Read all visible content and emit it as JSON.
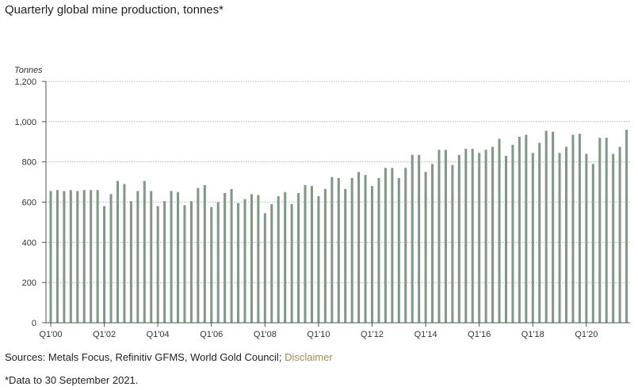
{
  "title": "Quarterly global mine production, tonnes*",
  "sources": {
    "text": "Sources: Metals Focus, Refinitiv GFMS, World Gold Council;",
    "link_label": "Disclaimer"
  },
  "footnote": "*Data to 30 September 2021.",
  "colors": {
    "bar": "#7f9a84",
    "grid": "#a8a8a8",
    "axis": "#555555",
    "link": "#a38a55"
  },
  "chart_data": {
    "type": "bar",
    "ylabel": "Tonnes",
    "xlabel": "",
    "ylim": [
      0,
      1200
    ],
    "yticks": [
      0,
      200,
      400,
      600,
      800,
      1000,
      1200
    ],
    "ytick_labels": [
      "0",
      "200",
      "400",
      "600",
      "800",
      "1,000",
      "1,200"
    ],
    "grid": true,
    "xtick_labels": [
      "Q1'00",
      "Q1'02",
      "Q1'04",
      "Q1'06",
      "Q1'08",
      "Q1'10",
      "Q1'12",
      "Q1'14",
      "Q1'16",
      "Q1'18",
      "Q1'20"
    ],
    "categories": [
      "Q1'00",
      "Q2'00",
      "Q3'00",
      "Q4'00",
      "Q1'01",
      "Q2'01",
      "Q3'01",
      "Q4'01",
      "Q1'02",
      "Q2'02",
      "Q3'02",
      "Q4'02",
      "Q1'03",
      "Q2'03",
      "Q3'03",
      "Q4'03",
      "Q1'04",
      "Q2'04",
      "Q3'04",
      "Q4'04",
      "Q1'05",
      "Q2'05",
      "Q3'05",
      "Q4'05",
      "Q1'06",
      "Q2'06",
      "Q3'06",
      "Q4'06",
      "Q1'07",
      "Q2'07",
      "Q3'07",
      "Q4'07",
      "Q1'08",
      "Q2'08",
      "Q3'08",
      "Q4'08",
      "Q1'09",
      "Q2'09",
      "Q3'09",
      "Q4'09",
      "Q1'10",
      "Q2'10",
      "Q3'10",
      "Q4'10",
      "Q1'11",
      "Q2'11",
      "Q3'11",
      "Q4'11",
      "Q1'12",
      "Q2'12",
      "Q3'12",
      "Q4'12",
      "Q1'13",
      "Q2'13",
      "Q3'13",
      "Q4'13",
      "Q1'14",
      "Q2'14",
      "Q3'14",
      "Q4'14",
      "Q1'15",
      "Q2'15",
      "Q3'15",
      "Q4'15",
      "Q1'16",
      "Q2'16",
      "Q3'16",
      "Q4'16",
      "Q1'17",
      "Q2'17",
      "Q3'17",
      "Q4'17",
      "Q1'18",
      "Q2'18",
      "Q3'18",
      "Q4'18",
      "Q1'19",
      "Q2'19",
      "Q3'19",
      "Q4'19",
      "Q1'20",
      "Q2'20",
      "Q3'20",
      "Q4'20",
      "Q1'21",
      "Q2'21",
      "Q3'21"
    ],
    "values": [
      655,
      660,
      655,
      660,
      655,
      660,
      660,
      660,
      580,
      640,
      705,
      690,
      605,
      655,
      705,
      655,
      580,
      605,
      655,
      650,
      585,
      605,
      670,
      685,
      575,
      600,
      645,
      665,
      595,
      615,
      640,
      635,
      545,
      590,
      630,
      650,
      590,
      645,
      685,
      680,
      630,
      665,
      725,
      720,
      665,
      720,
      750,
      735,
      680,
      720,
      770,
      770,
      720,
      770,
      835,
      835,
      750,
      790,
      860,
      860,
      785,
      835,
      865,
      865,
      845,
      860,
      875,
      915,
      830,
      885,
      925,
      935,
      845,
      895,
      955,
      950,
      845,
      875,
      935,
      940,
      840,
      790,
      920,
      920,
      840,
      875,
      960
    ]
  }
}
